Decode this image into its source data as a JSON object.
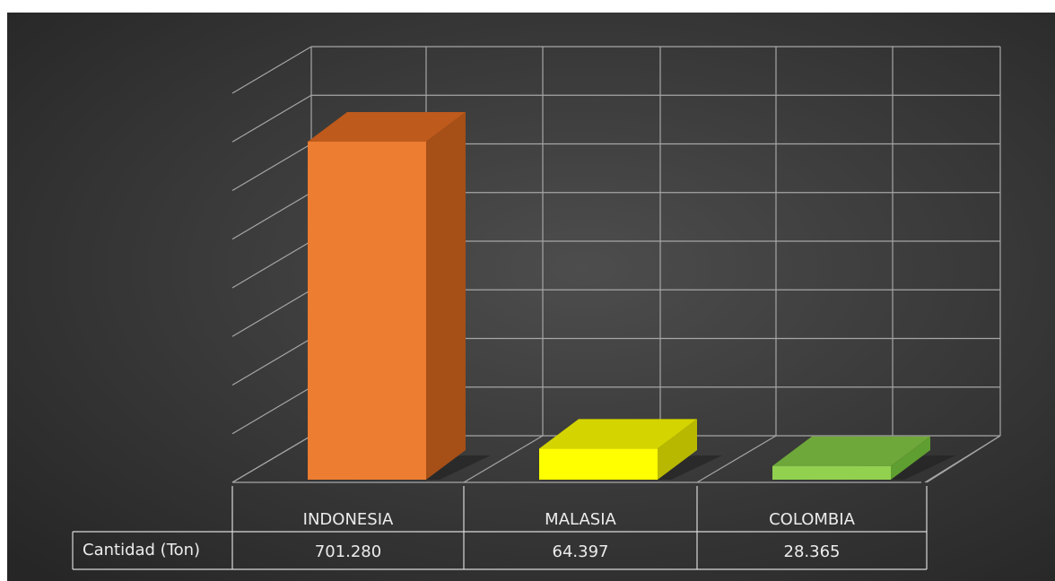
{
  "chart_data": {
    "type": "bar",
    "categories": [
      "INDONESIA",
      "MALASIA",
      "COLOMBIA"
    ],
    "series": [
      {
        "name": "Cantidad (Ton)",
        "values": [
          701.28,
          64.397,
          28.365
        ]
      }
    ],
    "data_labels": [
      "701.280",
      "64.397",
      "28.365"
    ],
    "title": "",
    "xlabel": "",
    "ylabel": "",
    "ylim": [
      0,
      800
    ],
    "grid": true,
    "legend": "data-table",
    "colors": [
      "#ED7D31",
      "#FFFF00",
      "#92D050"
    ],
    "colors_side": [
      "#A64F17",
      "#B8B800",
      "#5F9E30"
    ],
    "colors_top": [
      "#BE5A1C",
      "#D4D400",
      "#6FA83A"
    ]
  }
}
